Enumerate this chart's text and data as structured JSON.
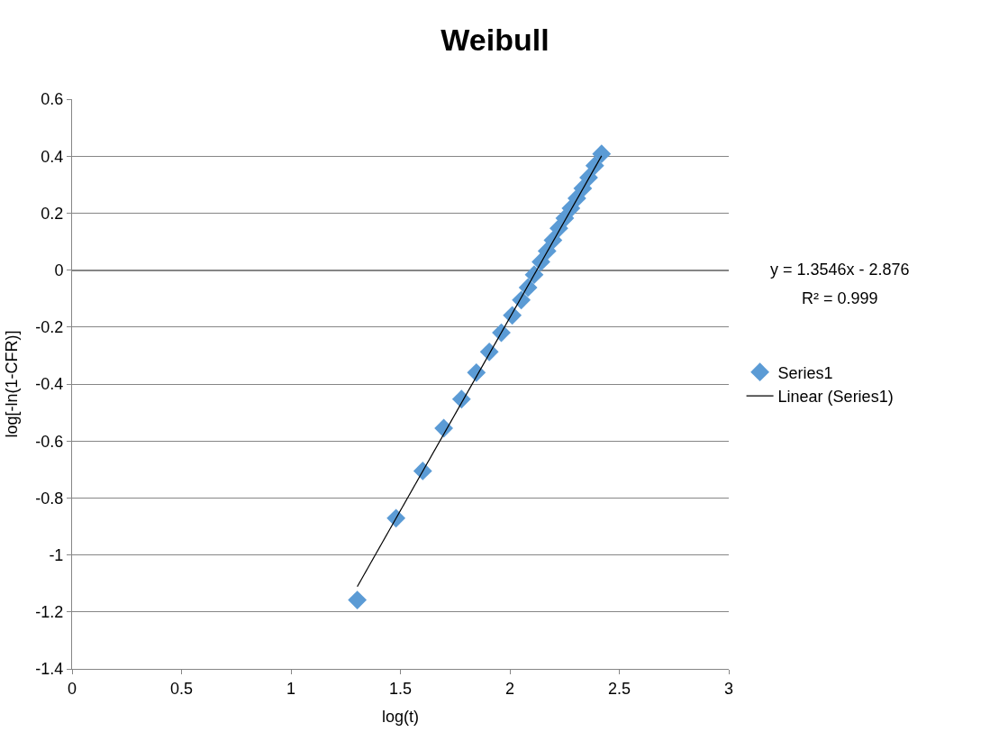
{
  "chart_data": {
    "type": "scatter",
    "title": "Weibull",
    "xlabel": "log(t)",
    "ylabel": "log[-ln(1-CFR)]",
    "xlim": [
      0,
      3
    ],
    "xticks": [
      0,
      0.5,
      1,
      1.5,
      2,
      2.5,
      3
    ],
    "ylim": [
      -1.4,
      0.6
    ],
    "yticks": [
      -1.4,
      -1.2,
      -1,
      -0.8,
      -0.6,
      -0.4,
      -0.2,
      0,
      0.2,
      0.4,
      0.6
    ],
    "grid": "y",
    "legend": "right",
    "series": [
      {
        "name": "Series1",
        "color": "#5b9bd5",
        "marker": "diamond",
        "x": [
          1.303,
          1.48,
          1.602,
          1.698,
          1.779,
          1.847,
          1.906,
          1.961,
          2.011,
          2.052,
          2.083,
          2.111,
          2.142,
          2.17,
          2.197,
          2.224,
          2.251,
          2.279,
          2.306,
          2.333,
          2.36,
          2.388,
          2.419
        ],
        "values": [
          -1.158,
          -0.871,
          -0.705,
          -0.555,
          -0.453,
          -0.36,
          -0.287,
          -0.22,
          -0.159,
          -0.105,
          -0.061,
          -0.016,
          0.029,
          0.067,
          0.105,
          0.147,
          0.182,
          0.217,
          0.252,
          0.287,
          0.325,
          0.367,
          0.408
        ]
      },
      {
        "name": "Linear (Series1)",
        "type": "line",
        "color": "#000000",
        "line_style": "solid",
        "marker": "none",
        "x": [
          1.303,
          2.419
        ],
        "values": [
          -1.111,
          0.401
        ]
      }
    ],
    "annotations": [
      "y = 1.3546x - 2.876",
      "R² = 0.999"
    ]
  }
}
